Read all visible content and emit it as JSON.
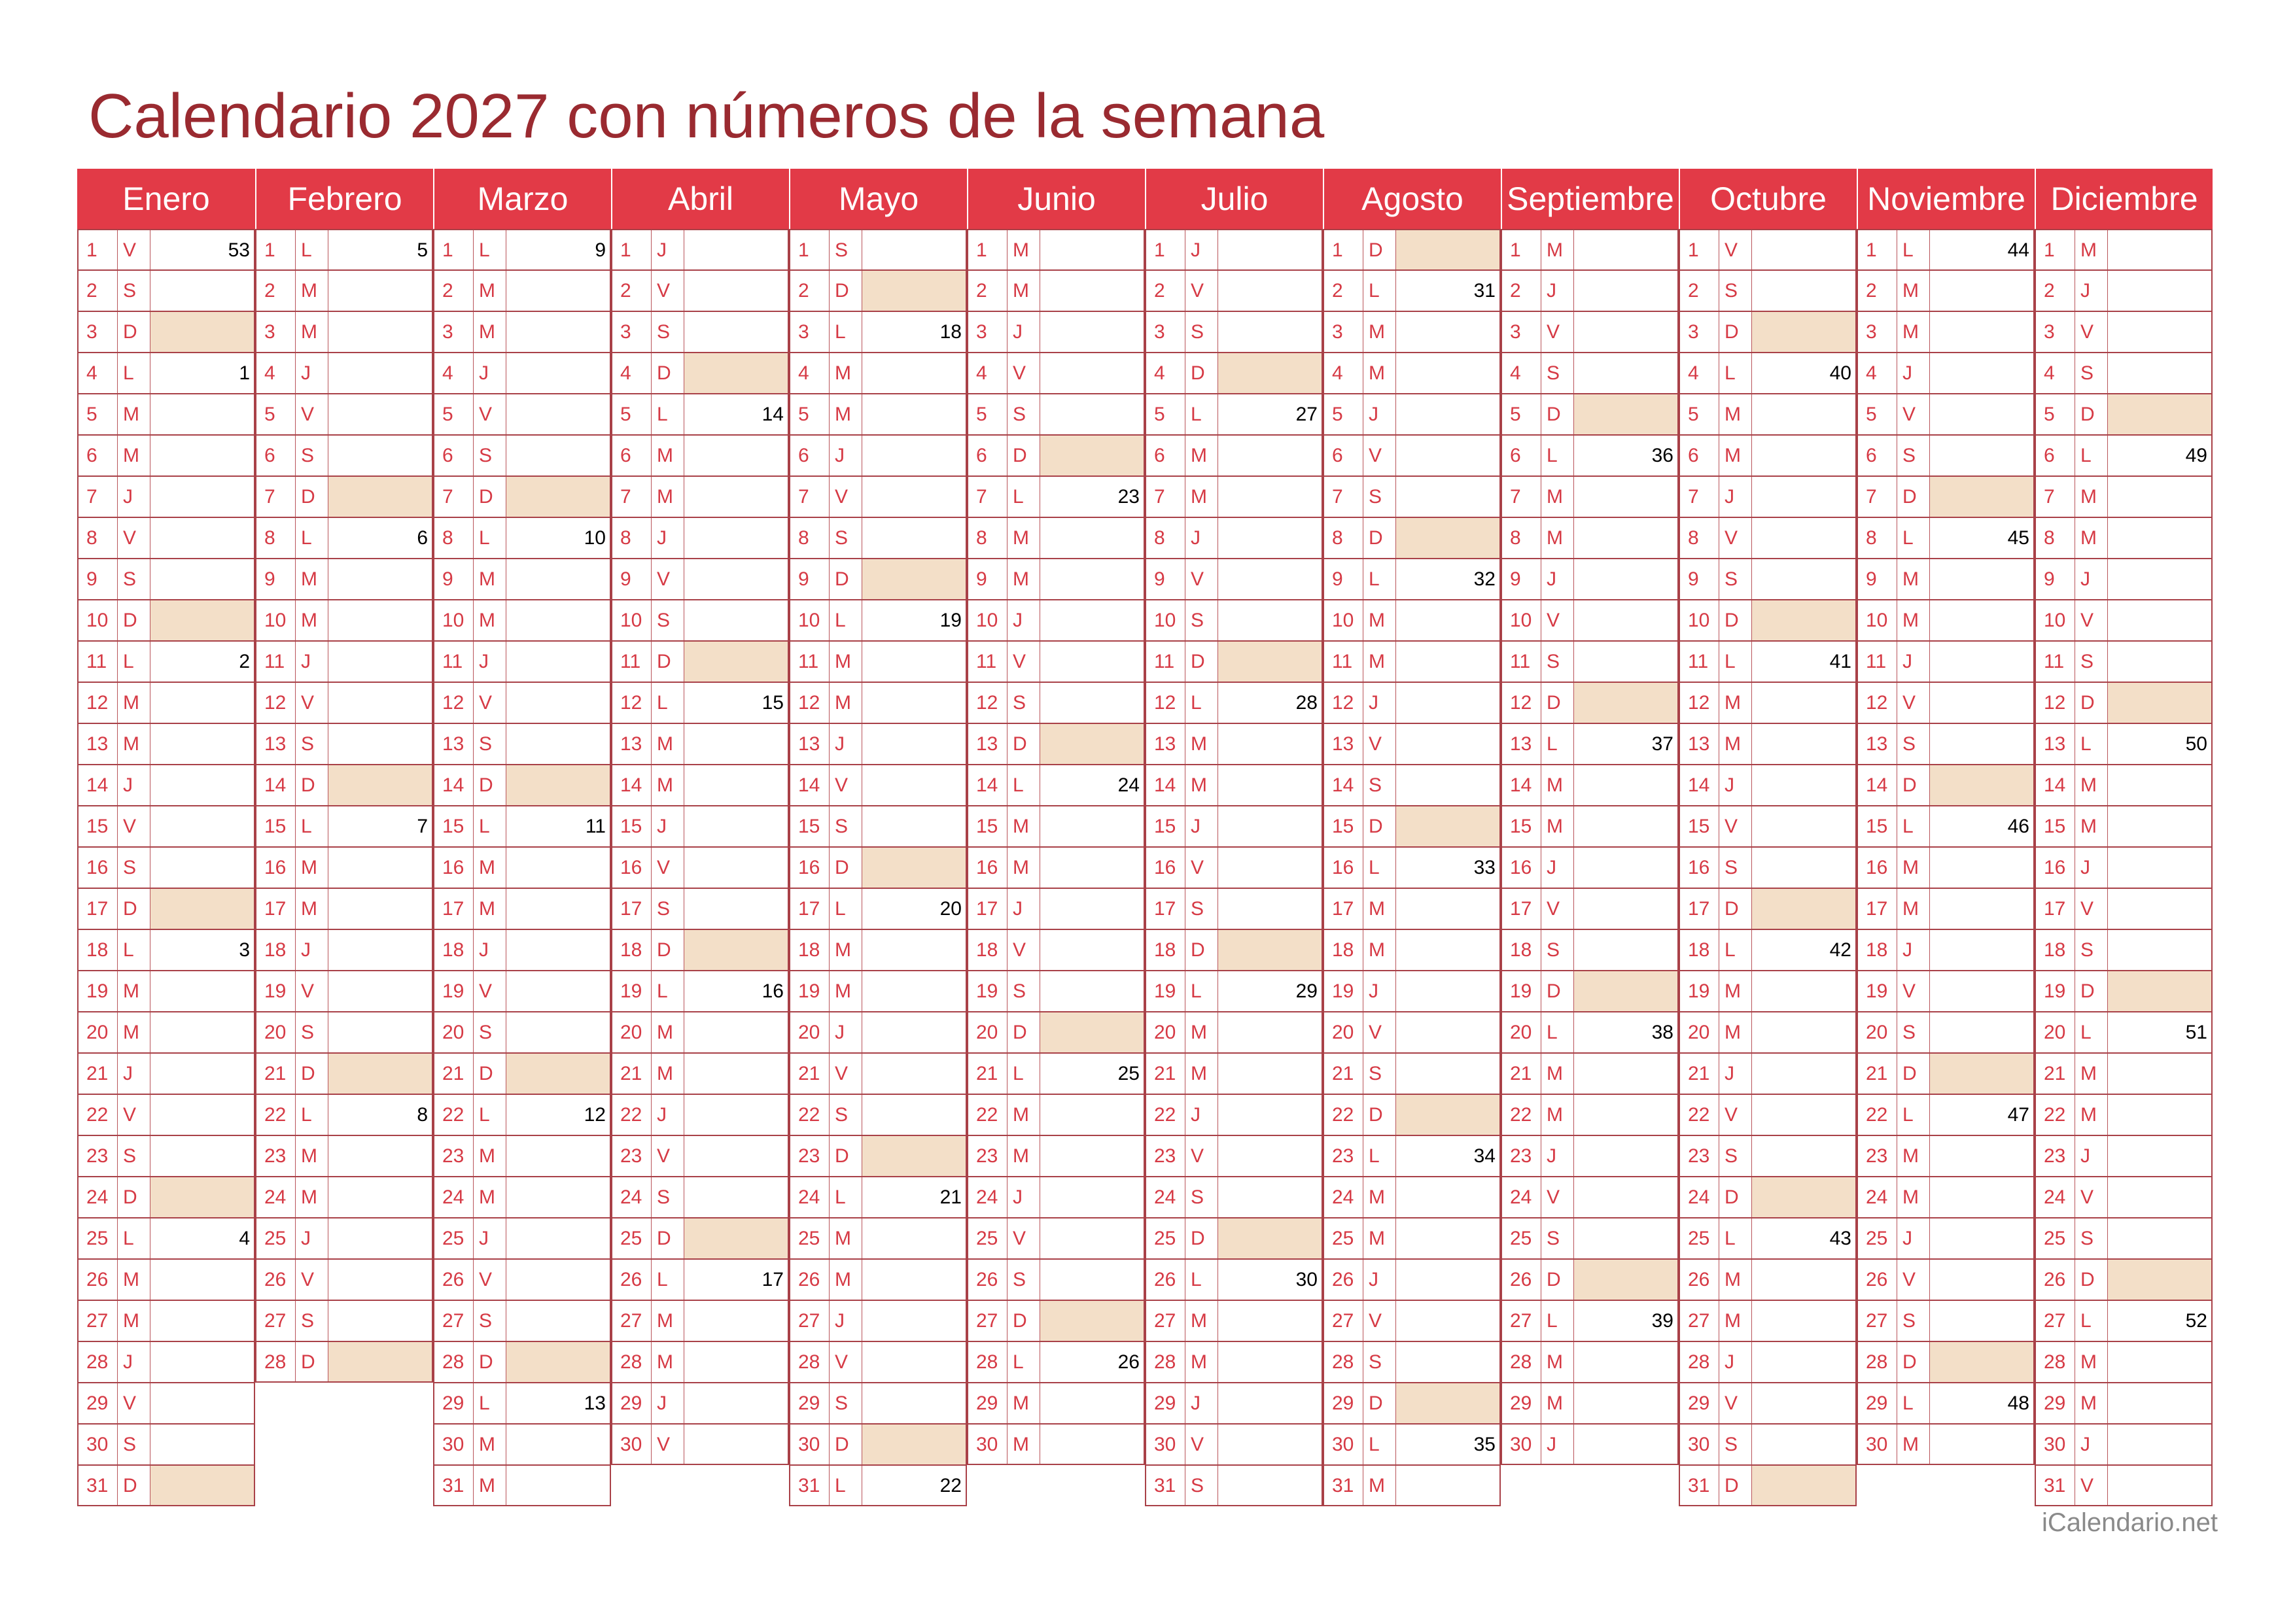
{
  "title": "Calendario 2027 con números de la semana",
  "footer": "iCalendario.net",
  "colors": {
    "title": "#9a2a30",
    "header_bg": "#e23a47",
    "header_text": "#ffffff",
    "day_text": "#d63a45",
    "grid_line": "#a94148",
    "sunday_bg": "#f3dfc8",
    "week_number_text": "#000000"
  },
  "months": [
    {
      "name": "Enero",
      "days": 31,
      "first_weekday": 5,
      "week_numbers": {
        "1": "53",
        "4": "1",
        "11": "2",
        "18": "3",
        "25": "4"
      }
    },
    {
      "name": "Febrero",
      "days": 28,
      "first_weekday": 1,
      "week_numbers": {
        "1": "5",
        "8": "6",
        "15": "7",
        "22": "8"
      }
    },
    {
      "name": "Marzo",
      "days": 31,
      "first_weekday": 1,
      "week_numbers": {
        "1": "9",
        "8": "10",
        "15": "11",
        "22": "12",
        "29": "13"
      }
    },
    {
      "name": "Abril",
      "days": 30,
      "first_weekday": 4,
      "week_numbers": {
        "5": "14",
        "12": "15",
        "19": "16",
        "26": "17"
      }
    },
    {
      "name": "Mayo",
      "days": 31,
      "first_weekday": 6,
      "week_numbers": {
        "3": "18",
        "10": "19",
        "17": "20",
        "24": "21",
        "31": "22"
      }
    },
    {
      "name": "Junio",
      "days": 30,
      "first_weekday": 2,
      "week_numbers": {
        "7": "23",
        "14": "24",
        "21": "25",
        "28": "26"
      }
    },
    {
      "name": "Julio",
      "days": 31,
      "first_weekday": 4,
      "week_numbers": {
        "5": "27",
        "12": "28",
        "19": "29",
        "26": "30"
      }
    },
    {
      "name": "Agosto",
      "days": 31,
      "first_weekday": 0,
      "week_numbers": {
        "2": "31",
        "9": "32",
        "16": "33",
        "23": "34",
        "30": "35"
      }
    },
    {
      "name": "Septiembre",
      "days": 30,
      "first_weekday": 3,
      "week_numbers": {
        "6": "36",
        "13": "37",
        "20": "38",
        "27": "39"
      }
    },
    {
      "name": "Octubre",
      "days": 31,
      "first_weekday": 5,
      "week_numbers": {
        "4": "40",
        "11": "41",
        "18": "42",
        "25": "43"
      }
    },
    {
      "name": "Noviembre",
      "days": 30,
      "first_weekday": 1,
      "week_numbers": {
        "1": "44",
        "8": "45",
        "15": "46",
        "22": "47",
        "29": "48"
      }
    },
    {
      "name": "Diciembre",
      "days": 31,
      "first_weekday": 3,
      "week_numbers": {
        "6": "49",
        "13": "50",
        "20": "51",
        "27": "52"
      }
    }
  ],
  "weekday_letters": [
    "D",
    "L",
    "M",
    "M",
    "J",
    "V",
    "S"
  ]
}
